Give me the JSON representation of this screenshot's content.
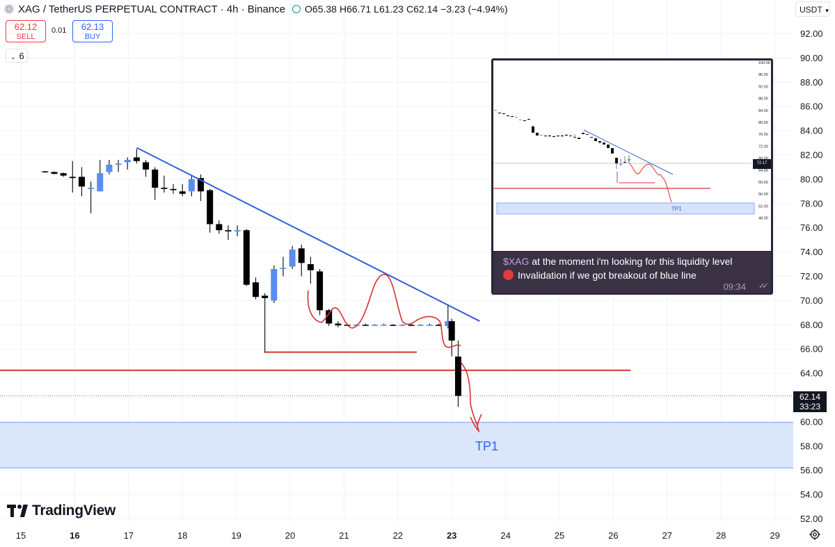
{
  "header": {
    "title": "XAG / TetherUS PERPETUAL CONTRACT · 4h · Binance",
    "ohlc": {
      "o_label": "O",
      "o": "65.38",
      "h_label": "H",
      "h": "66.71",
      "l_label": "L",
      "l": "61.23",
      "c_label": "C",
      "c": "62.14",
      "change": "−3.23 (−4.94%)"
    }
  },
  "trade": {
    "sell_price": "62.12",
    "sell_label": "SELL",
    "spread": "0.01",
    "buy_price": "62.13",
    "buy_label": "BUY"
  },
  "indicator_count": "6",
  "currency_selector": "USDT",
  "last_price": {
    "value": "62.14",
    "countdown": "33:23"
  },
  "annotation_tp": "TP1",
  "brand": "TradingView",
  "colors": {
    "trendline": "#2f5fd8",
    "hand_drawn": "#d9302f",
    "level_line": "#d9302f",
    "zone_fill": "#d6e3fa",
    "zone_edge": "#7d9be0",
    "bull_candle": "#5b8def",
    "bear_candle": "#000000"
  },
  "chart_data": {
    "type": "candlestick",
    "xlabel": "",
    "ylabel": "",
    "ylim": [
      51.0,
      93.8
    ],
    "y_ticks": [
      "52.00",
      "54.00",
      "56.00",
      "58.00",
      "60.00",
      "62.00",
      "64.00",
      "66.00",
      "68.00",
      "70.00",
      "72.00",
      "74.00",
      "76.00",
      "78.00",
      "80.00",
      "82.00",
      "84.00",
      "86.00",
      "88.00",
      "90.00",
      "92.00"
    ],
    "x_ticks": [
      "15",
      "16",
      "17",
      "18",
      "19",
      "20",
      "21",
      "22",
      "23",
      "24",
      "25",
      "26",
      "27",
      "28",
      "29"
    ],
    "x_range_days": [
      14.6,
      29.3
    ],
    "candles": [
      {
        "t": 15.45,
        "o": 80.65,
        "h": 80.7,
        "l": 80.55,
        "c": 80.6
      },
      {
        "t": 15.62,
        "o": 80.6,
        "h": 80.62,
        "l": 80.4,
        "c": 80.45
      },
      {
        "t": 15.79,
        "o": 80.5,
        "h": 80.55,
        "l": 80.2,
        "c": 80.3
      },
      {
        "t": 15.96,
        "o": 80.2,
        "h": 81.5,
        "l": 78.9,
        "c": 80.1
      },
      {
        "t": 16.13,
        "o": 80.2,
        "h": 81.0,
        "l": 78.6,
        "c": 79.4
      },
      {
        "t": 16.3,
        "o": 79.2,
        "h": 79.8,
        "l": 77.2,
        "c": 79.3
      },
      {
        "t": 16.47,
        "o": 79.0,
        "h": 81.6,
        "l": 79.0,
        "c": 80.5
      },
      {
        "t": 16.64,
        "o": 80.6,
        "h": 81.6,
        "l": 80.4,
        "c": 81.2
      },
      {
        "t": 16.81,
        "o": 81.2,
        "h": 81.6,
        "l": 80.6,
        "c": 81.3
      },
      {
        "t": 16.98,
        "o": 81.4,
        "h": 81.8,
        "l": 80.8,
        "c": 81.6
      },
      {
        "t": 17.15,
        "o": 81.8,
        "h": 82.5,
        "l": 81.3,
        "c": 81.5
      },
      {
        "t": 17.32,
        "o": 81.4,
        "h": 81.6,
        "l": 80.2,
        "c": 80.8
      },
      {
        "t": 17.49,
        "o": 80.8,
        "h": 81.0,
        "l": 78.3,
        "c": 79.3
      },
      {
        "t": 17.66,
        "o": 79.3,
        "h": 80.3,
        "l": 78.9,
        "c": 79.2
      },
      {
        "t": 17.83,
        "o": 79.2,
        "h": 79.6,
        "l": 78.8,
        "c": 79.1
      },
      {
        "t": 18.0,
        "o": 79.0,
        "h": 79.6,
        "l": 78.6,
        "c": 78.8
      },
      {
        "t": 18.17,
        "o": 79.0,
        "h": 80.3,
        "l": 78.6,
        "c": 80.0
      },
      {
        "t": 18.34,
        "o": 80.1,
        "h": 80.4,
        "l": 78.2,
        "c": 79.0
      },
      {
        "t": 18.51,
        "o": 79.1,
        "h": 79.2,
        "l": 75.6,
        "c": 76.3
      },
      {
        "t": 18.68,
        "o": 76.3,
        "h": 76.6,
        "l": 75.5,
        "c": 75.8
      },
      {
        "t": 18.85,
        "o": 75.8,
        "h": 76.2,
        "l": 75.0,
        "c": 75.7
      },
      {
        "t": 19.02,
        "o": 75.7,
        "h": 76.2,
        "l": 75.3,
        "c": 75.8
      },
      {
        "t": 19.19,
        "o": 75.8,
        "h": 75.9,
        "l": 71.2,
        "c": 71.3
      },
      {
        "t": 19.36,
        "o": 71.5,
        "h": 71.9,
        "l": 70.1,
        "c": 70.3
      },
      {
        "t": 19.53,
        "o": 70.4,
        "h": 70.6,
        "l": 65.7,
        "c": 70.2
      },
      {
        "t": 19.7,
        "o": 70.0,
        "h": 72.9,
        "l": 69.8,
        "c": 72.6
      },
      {
        "t": 19.87,
        "o": 72.6,
        "h": 73.6,
        "l": 72.0,
        "c": 72.7
      },
      {
        "t": 20.04,
        "o": 72.8,
        "h": 74.5,
        "l": 72.6,
        "c": 74.2
      },
      {
        "t": 20.21,
        "o": 74.3,
        "h": 74.6,
        "l": 72.0,
        "c": 73.1
      },
      {
        "t": 20.38,
        "o": 73.0,
        "h": 73.6,
        "l": 71.4,
        "c": 72.5
      },
      {
        "t": 20.55,
        "o": 72.4,
        "h": 72.6,
        "l": 68.8,
        "c": 69.2
      },
      {
        "t": 20.72,
        "o": 69.2,
        "h": 69.3,
        "l": 67.9,
        "c": 68.1
      },
      {
        "t": 20.89,
        "o": 68.1,
        "h": 68.3,
        "l": 67.8,
        "c": 67.95
      },
      {
        "t": 21.06,
        "o": 68.0,
        "h": 68.1,
        "l": 67.9,
        "c": 67.95
      },
      {
        "t": 21.23,
        "o": 67.95,
        "h": 68.05,
        "l": 67.9,
        "c": 68.0
      },
      {
        "t": 21.4,
        "o": 68.0,
        "h": 68.1,
        "l": 67.9,
        "c": 67.95
      },
      {
        "t": 21.57,
        "o": 67.95,
        "h": 68.05,
        "l": 67.9,
        "c": 68.0
      },
      {
        "t": 21.74,
        "o": 68.0,
        "h": 68.1,
        "l": 67.95,
        "c": 68.0
      },
      {
        "t": 21.91,
        "o": 68.0,
        "h": 68.05,
        "l": 67.9,
        "c": 67.95
      },
      {
        "t": 22.08,
        "o": 67.95,
        "h": 68.05,
        "l": 67.9,
        "c": 68.0
      },
      {
        "t": 22.25,
        "o": 68.0,
        "h": 68.1,
        "l": 67.9,
        "c": 67.95
      },
      {
        "t": 22.42,
        "o": 67.95,
        "h": 68.05,
        "l": 67.9,
        "c": 68.0
      },
      {
        "t": 22.59,
        "o": 68.0,
        "h": 68.1,
        "l": 67.9,
        "c": 68.0
      },
      {
        "t": 22.76,
        "o": 68.0,
        "h": 68.1,
        "l": 67.9,
        "c": 67.95
      },
      {
        "t": 22.93,
        "o": 67.9,
        "h": 69.7,
        "l": 67.7,
        "c": 68.3
      },
      {
        "t": 23.0,
        "o": 68.3,
        "h": 68.5,
        "l": 65.4,
        "c": 66.7
      },
      {
        "t": 23.12,
        "o": 65.38,
        "h": 66.71,
        "l": 61.23,
        "c": 62.14
      }
    ],
    "overlays": [
      {
        "kind": "trendline",
        "color": "blue",
        "points": [
          [
            17.15,
            82.6
          ],
          [
            23.52,
            68.3
          ]
        ]
      },
      {
        "kind": "horizontal",
        "color": "red",
        "y": 64.25,
        "x_start": 14.6,
        "x_end": 26.32
      },
      {
        "kind": "horizontal",
        "color": "red",
        "y": 65.75,
        "x_start": 19.53,
        "x_end": 22.35
      },
      {
        "kind": "zone",
        "color": "blue",
        "y_top": 59.95,
        "y_bottom": 56.2
      },
      {
        "kind": "dashed",
        "color": "gray",
        "y": 62.14
      }
    ],
    "annotation": "TP1"
  },
  "inset": {
    "caption_tag": "$XAG",
    "caption_rest": " at the moment i'm looking for this liquidity level",
    "caption_line2": "Invalidation if we got breakout of blue line",
    "time": "09:34",
    "checks": "✓✓",
    "axis": [
      "100.00",
      "96.00",
      "92.00",
      "88.00",
      "84.00",
      "80.00",
      "76.00",
      "72.00",
      "68.00",
      "64.00",
      "60.00",
      "56.00",
      "52.00",
      "48.00"
    ],
    "price_tag": "72.17",
    "tp_label": "TP1"
  }
}
